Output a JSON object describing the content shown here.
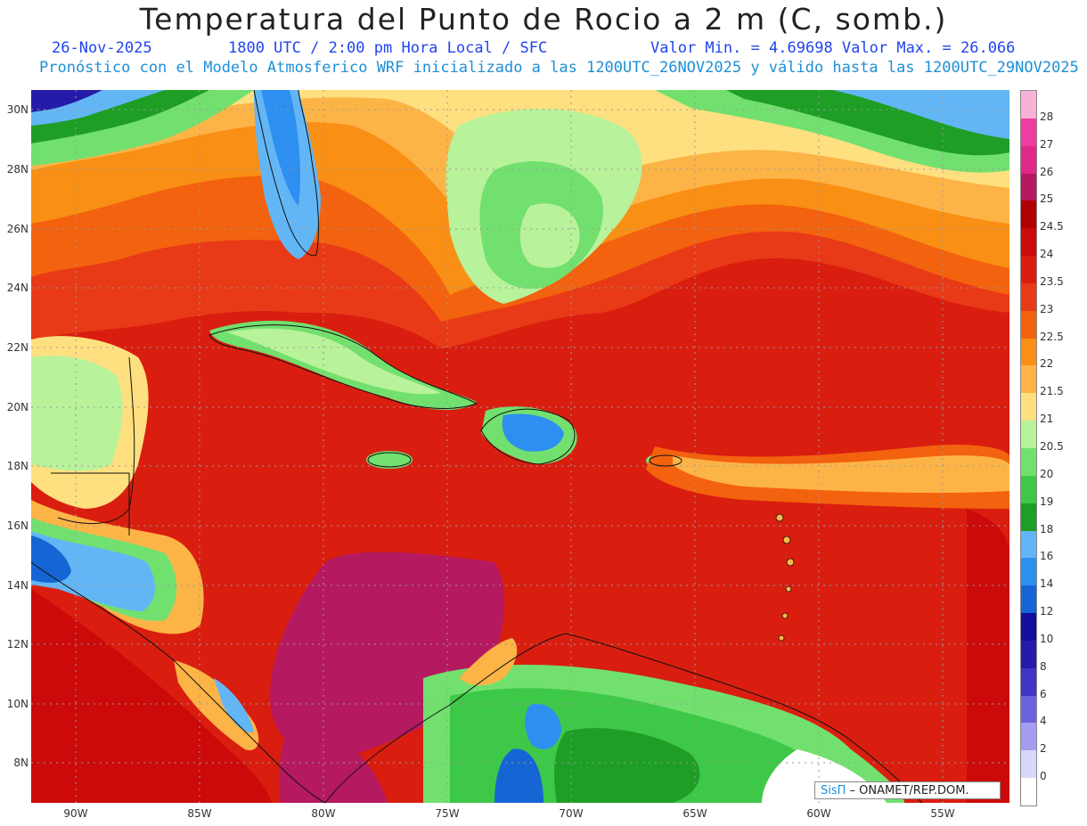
{
  "title": "Temperatura del Punto de Rocio a 2 m (C, somb.)",
  "header": {
    "date": "26-Nov-2025",
    "time": "1800 UTC / 2:00 pm Hora Local / SFC",
    "minmax": "Valor Min. = 4.69698  Valor Max. = 26.066",
    "model": "Pronóstico con el Modelo Atmosferico WRF inicializado a las 1200UTC_26NOV2025 y válido hasta las  1200UTC_29NOV2025"
  },
  "lat_labels": [
    "30N",
    "28N",
    "26N",
    "24N",
    "22N",
    "20N",
    "18N",
    "16N",
    "14N",
    "12N",
    "10N",
    "8N"
  ],
  "lon_labels": [
    "90W",
    "85W",
    "80W",
    "75W",
    "70W",
    "65W",
    "60W",
    "55W"
  ],
  "colorbar": {
    "labels": [
      "28",
      "27",
      "26",
      "25",
      "24.5",
      "24",
      "23.5",
      "23",
      "22.5",
      "22",
      "21.5",
      "21",
      "20.5",
      "20",
      "19",
      "18",
      "16",
      "14",
      "12",
      "10",
      "8",
      "6",
      "4",
      "2",
      "0"
    ],
    "colors": [
      "#f7b2d8",
      "#ee3ca3",
      "#e0288a",
      "#b5195f",
      "#b00000",
      "#cc0a0a",
      "#d91e10",
      "#e83a16",
      "#f3620e",
      "#f98f14",
      "#fdb447",
      "#ffe080",
      "#b8f29a",
      "#72e06e",
      "#3ec848",
      "#1e9e25",
      "#63b6f5",
      "#2d8ff0",
      "#1566d4",
      "#140f9a",
      "#241ca8",
      "#3f37c4",
      "#6b63de",
      "#a49cf0",
      "#d8d8f8",
      "#ffffff"
    ]
  },
  "credit": {
    "brand": "SisΠ",
    "text": " – ONAMET/REP.DOM."
  }
}
